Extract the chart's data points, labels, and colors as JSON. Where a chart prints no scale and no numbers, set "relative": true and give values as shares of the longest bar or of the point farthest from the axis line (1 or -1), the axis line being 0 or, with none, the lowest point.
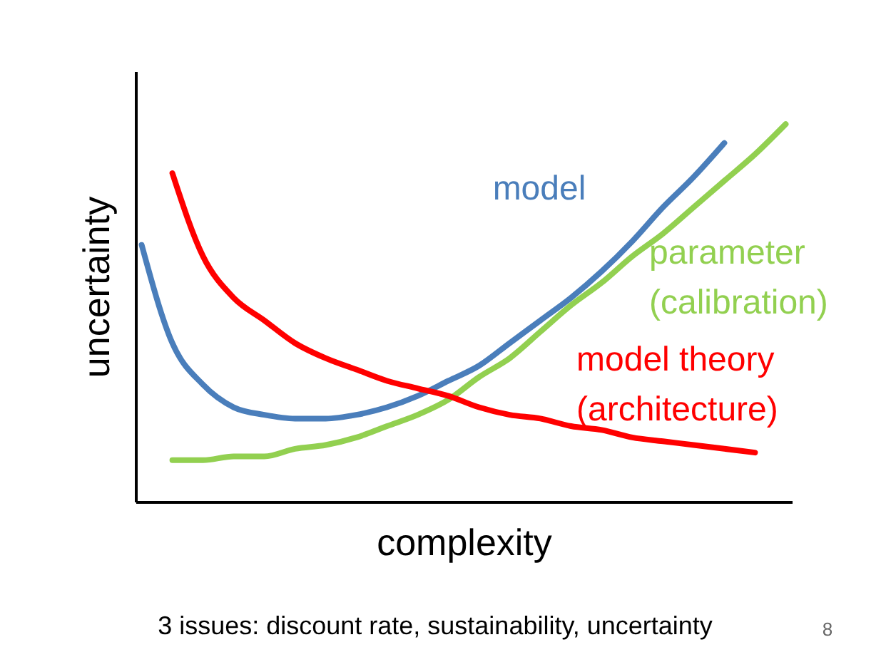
{
  "chart_data": {
    "type": "line",
    "relative": true,
    "xlabel": "complexity",
    "ylabel": "uncertainty",
    "categories": [
      null,
      null,
      null,
      null,
      null,
      null,
      null,
      null,
      null,
      null,
      null,
      null,
      null,
      null,
      null,
      null,
      null,
      null,
      null,
      null,
      null,
      null
    ],
    "series": [
      {
        "name": "model",
        "color": "#4a7ebb",
        "values": [
          0.68,
          0.42,
          0.31,
          0.25,
          0.23,
          0.22,
          0.22,
          0.23,
          0.25,
          0.28,
          0.32,
          0.36,
          0.42,
          0.48,
          0.54,
          0.61,
          0.69,
          0.78,
          0.86,
          0.95,
          null,
          null
        ]
      },
      {
        "name": "parameter\n(calibration)",
        "color": "#92d050",
        "values": [
          null,
          0.11,
          0.11,
          0.12,
          0.12,
          0.14,
          0.15,
          0.17,
          0.2,
          0.23,
          0.27,
          0.33,
          0.38,
          0.45,
          0.52,
          0.58,
          0.65,
          0.71,
          0.78,
          0.85,
          0.92,
          1
        ]
      },
      {
        "name": "model theory\n(architecture)",
        "color": "#ff0000",
        "values": [
          null,
          0.87,
          0.65,
          0.54,
          0.48,
          0.42,
          0.38,
          0.35,
          0.32,
          0.3,
          0.28,
          0.25,
          0.23,
          0.22,
          0.2,
          0.19,
          0.17,
          0.16,
          0.15,
          0.14,
          0.13,
          null
        ]
      }
    ],
    "annotations": [
      "3 issues: discount  rate, sustainability, uncertainty",
      "8"
    ],
    "legend": false,
    "grid": false
  }
}
